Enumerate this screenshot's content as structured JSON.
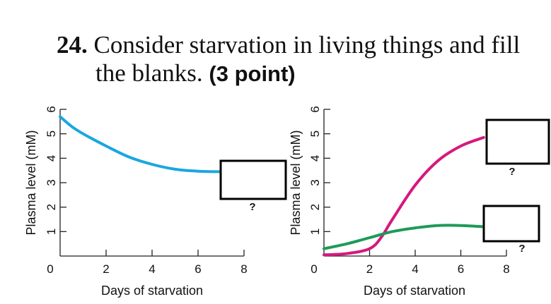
{
  "question": {
    "number": "24.",
    "text_line1": "Consider starvation in living things and fill",
    "text_line2": "the blanks.",
    "points": "(3 point)"
  },
  "chart_data": [
    {
      "type": "line",
      "xlabel": "Days of starvation",
      "ylabel": "Plasma level (mM)",
      "xlim": [
        0,
        8
      ],
      "ylim": [
        0,
        6
      ],
      "x_ticks": [
        "2",
        "4",
        "6",
        "8"
      ],
      "y_ticks": [
        "1",
        "2",
        "3",
        "4",
        "5",
        "6"
      ],
      "origin_label": "0",
      "series": [
        {
          "color": "#1aa7e0",
          "x": [
            0,
            0.5,
            1,
            2,
            3,
            4,
            5,
            6,
            7
          ],
          "y": [
            5.7,
            5.3,
            5.0,
            4.5,
            4.05,
            3.75,
            3.55,
            3.47,
            3.45
          ]
        }
      ],
      "blanks": [
        {
          "label": "?",
          "x": 7,
          "y": 3.45
        }
      ]
    },
    {
      "type": "line",
      "xlabel": "Days of starvation",
      "ylabel": "Plasma level (mM)",
      "xlim": [
        0,
        8
      ],
      "ylim": [
        0,
        6
      ],
      "x_ticks": [
        "2",
        "4",
        "6",
        "8"
      ],
      "y_ticks": [
        "1",
        "2",
        "3",
        "4",
        "5",
        "6"
      ],
      "origin_label": "0",
      "series": [
        {
          "color": "#d6187e",
          "x": [
            0,
            1,
            2,
            2.5,
            3,
            4,
            5,
            6,
            7
          ],
          "y": [
            0.05,
            0.1,
            0.3,
            0.75,
            1.5,
            2.9,
            3.9,
            4.5,
            4.85
          ]
        },
        {
          "color": "#1e9a58",
          "x": [
            0,
            1,
            2,
            3,
            4,
            5,
            6,
            7
          ],
          "y": [
            0.3,
            0.5,
            0.75,
            1.0,
            1.15,
            1.25,
            1.25,
            1.2
          ]
        }
      ],
      "blanks": [
        {
          "label": "?",
          "x": 7,
          "y": 4.85
        },
        {
          "label": "?",
          "x": 7,
          "y": 1.2
        }
      ]
    }
  ]
}
